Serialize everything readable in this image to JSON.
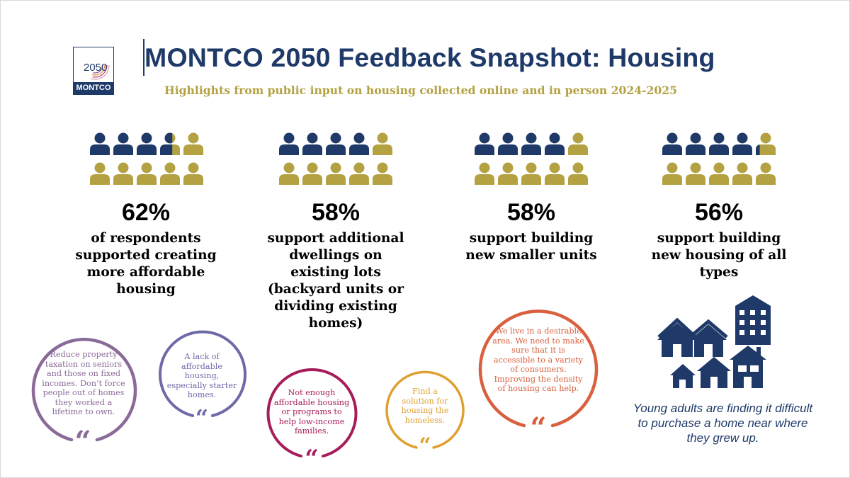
{
  "header": {
    "logo_year": "2050",
    "logo_name": "MONTCO",
    "title": "MONTCO 2050 Feedback Snapshot: Housing",
    "subtitle": "Highlights from public input on housing collected online and in person 2024-2025"
  },
  "colors": {
    "navy": "#1f3a68",
    "gold": "#b3a142",
    "purple": "#8a6a98",
    "lavender": "#6e6aa8",
    "magenta": "#a61d5a",
    "orange": "#e0a030",
    "coral": "#d9603e"
  },
  "stats": [
    {
      "percent": "62%",
      "value": 62,
      "description": "of respondents supported creating more affordable housing"
    },
    {
      "percent": "58%",
      "value": 58,
      "description": "support additional dwellings on existing lots (backyard units or dividing existing homes)"
    },
    {
      "percent": "58%",
      "value": 58,
      "description": "support building new smaller units"
    },
    {
      "percent": "56%",
      "value": 56,
      "description": "support building new housing of all types"
    }
  ],
  "quotes": [
    {
      "text": "Reduce property taxation on seniors and those on fixed incomes. Don’t force people out of homes they worked a lifetime to own.",
      "mark": "“"
    },
    {
      "text": "A lack of affordable housing, especially starter homes.",
      "mark": "“"
    },
    {
      "text": "Not enough affordable housing or programs to help low-income families.",
      "mark": "“"
    },
    {
      "text": "Find a solution for housing the homeless.",
      "mark": "“"
    },
    {
      "text": "We live in a desirable area. We need to make sure that it is accessible to a variety of consumers.  Improving the density of housing can help.",
      "mark": "“"
    }
  ],
  "houses_icon": "houses-and-apartment-icon",
  "caption": "Young adults are finding it difficult to purchase a home near where they grew up."
}
